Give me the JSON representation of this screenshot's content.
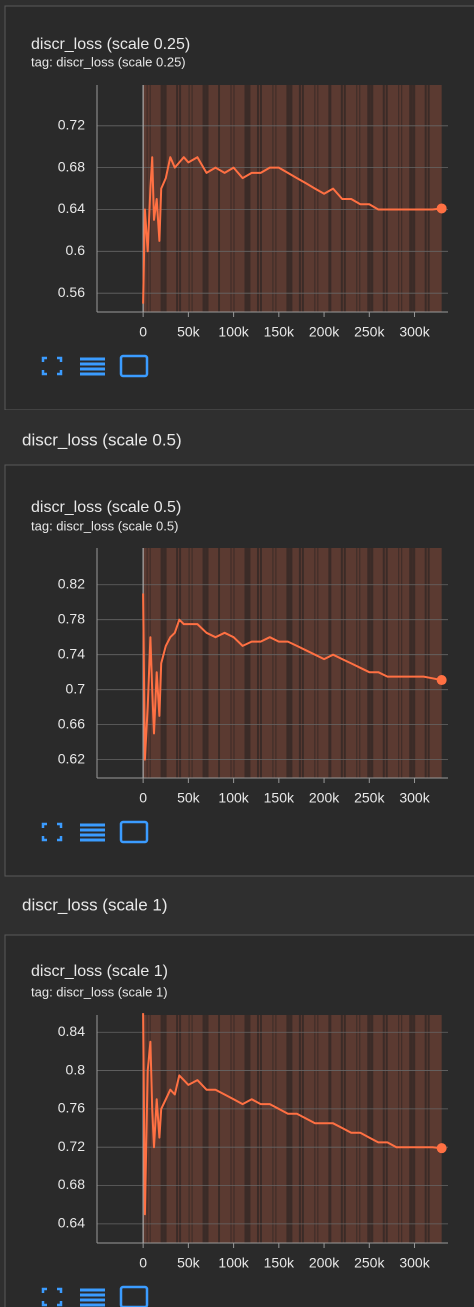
{
  "chart_data": [
    {
      "type": "line",
      "title": "discr_loss (scale 0.25)",
      "tag": "tag: discr_loss (scale 0.25)",
      "color": "#ff7043",
      "grid": true,
      "x": [
        0,
        2000,
        5000,
        8000,
        10000,
        12000,
        15000,
        18000,
        20000,
        25000,
        30000,
        35000,
        40000,
        45000,
        50000,
        60000,
        70000,
        80000,
        90000,
        100000,
        110000,
        120000,
        130000,
        140000,
        150000,
        160000,
        170000,
        180000,
        190000,
        200000,
        210000,
        220000,
        230000,
        240000,
        250000,
        260000,
        270000,
        280000,
        290000,
        300000,
        310000,
        320000,
        330000
      ],
      "values": [
        0.55,
        0.64,
        0.6,
        0.66,
        0.69,
        0.63,
        0.65,
        0.61,
        0.66,
        0.67,
        0.69,
        0.68,
        0.685,
        0.69,
        0.685,
        0.69,
        0.675,
        0.68,
        0.675,
        0.68,
        0.67,
        0.675,
        0.675,
        0.68,
        0.68,
        0.675,
        0.67,
        0.665,
        0.66,
        0.655,
        0.66,
        0.65,
        0.65,
        0.645,
        0.645,
        0.64,
        0.64,
        0.64,
        0.64,
        0.64,
        0.64,
        0.64,
        0.641
      ],
      "xlim": [
        -51000,
        337000
      ],
      "ylim": [
        0.542,
        0.759
      ],
      "xticks": [
        0,
        {
          "value": 50000,
          "label": "50k"
        },
        {
          "value": 100000,
          "label": "100k"
        },
        {
          "value": 150000,
          "label": "150k"
        },
        {
          "value": 200000,
          "label": "200k"
        },
        {
          "value": 250000,
          "label": "250k"
        },
        {
          "value": 300000,
          "label": "300k"
        }
      ],
      "yticks": [
        0.56,
        0.6,
        0.64,
        0.68,
        0.72
      ]
    },
    {
      "type": "line",
      "section_title": "discr_loss (scale 0.5)",
      "title": "discr_loss (scale 0.5)",
      "tag": "tag: discr_loss (scale 0.5)",
      "color": "#ff7043",
      "grid": true,
      "x": [
        0,
        2000,
        5000,
        8000,
        10000,
        12000,
        15000,
        18000,
        20000,
        25000,
        30000,
        35000,
        40000,
        45000,
        50000,
        60000,
        70000,
        80000,
        90000,
        100000,
        110000,
        120000,
        130000,
        140000,
        150000,
        160000,
        170000,
        180000,
        190000,
        200000,
        210000,
        220000,
        230000,
        240000,
        250000,
        260000,
        270000,
        280000,
        290000,
        300000,
        310000,
        320000,
        330000
      ],
      "values": [
        0.81,
        0.62,
        0.68,
        0.76,
        0.7,
        0.65,
        0.72,
        0.67,
        0.73,
        0.75,
        0.76,
        0.765,
        0.78,
        0.775,
        0.775,
        0.775,
        0.765,
        0.76,
        0.765,
        0.76,
        0.75,
        0.755,
        0.755,
        0.76,
        0.755,
        0.755,
        0.75,
        0.745,
        0.74,
        0.735,
        0.74,
        0.735,
        0.73,
        0.725,
        0.72,
        0.72,
        0.715,
        0.715,
        0.715,
        0.715,
        0.715,
        0.713,
        0.711
      ],
      "xlim": [
        -51000,
        337000
      ],
      "ylim": [
        0.599,
        0.862
      ],
      "xticks": [
        0,
        {
          "value": 50000,
          "label": "50k"
        },
        {
          "value": 100000,
          "label": "100k"
        },
        {
          "value": 150000,
          "label": "150k"
        },
        {
          "value": 200000,
          "label": "200k"
        },
        {
          "value": 250000,
          "label": "250k"
        },
        {
          "value": 300000,
          "label": "300k"
        }
      ],
      "yticks": [
        0.62,
        0.66,
        0.7,
        0.74,
        0.78,
        0.82
      ]
    },
    {
      "type": "line",
      "section_title": "discr_loss (scale 1)",
      "title": "discr_loss (scale 1)",
      "tag": "tag: discr_loss (scale 1)",
      "color": "#ff7043",
      "grid": true,
      "x": [
        0,
        2000,
        5000,
        8000,
        10000,
        12000,
        15000,
        18000,
        20000,
        25000,
        30000,
        35000,
        40000,
        45000,
        50000,
        60000,
        70000,
        80000,
        90000,
        100000,
        110000,
        120000,
        130000,
        140000,
        150000,
        160000,
        170000,
        180000,
        190000,
        200000,
        210000,
        220000,
        230000,
        240000,
        250000,
        260000,
        270000,
        280000,
        290000,
        300000,
        310000,
        320000,
        330000
      ],
      "values": [
        0.86,
        0.65,
        0.8,
        0.83,
        0.76,
        0.72,
        0.77,
        0.73,
        0.76,
        0.77,
        0.78,
        0.775,
        0.795,
        0.79,
        0.785,
        0.79,
        0.78,
        0.78,
        0.775,
        0.77,
        0.765,
        0.77,
        0.765,
        0.765,
        0.76,
        0.755,
        0.755,
        0.75,
        0.745,
        0.745,
        0.745,
        0.74,
        0.735,
        0.735,
        0.73,
        0.725,
        0.725,
        0.72,
        0.72,
        0.72,
        0.72,
        0.72,
        0.719
      ],
      "xlim": [
        -51000,
        337000
      ],
      "ylim": [
        0.62,
        0.858
      ],
      "xticks": [
        0,
        {
          "value": 50000,
          "label": "50k"
        },
        {
          "value": 100000,
          "label": "100k"
        },
        {
          "value": 150000,
          "label": "150k"
        },
        {
          "value": 200000,
          "label": "200k"
        },
        {
          "value": 250000,
          "label": "250k"
        },
        {
          "value": 300000,
          "label": "300k"
        }
      ],
      "yticks": [
        0.64,
        0.68,
        0.72,
        0.76,
        0.8,
        0.84
      ]
    }
  ]
}
